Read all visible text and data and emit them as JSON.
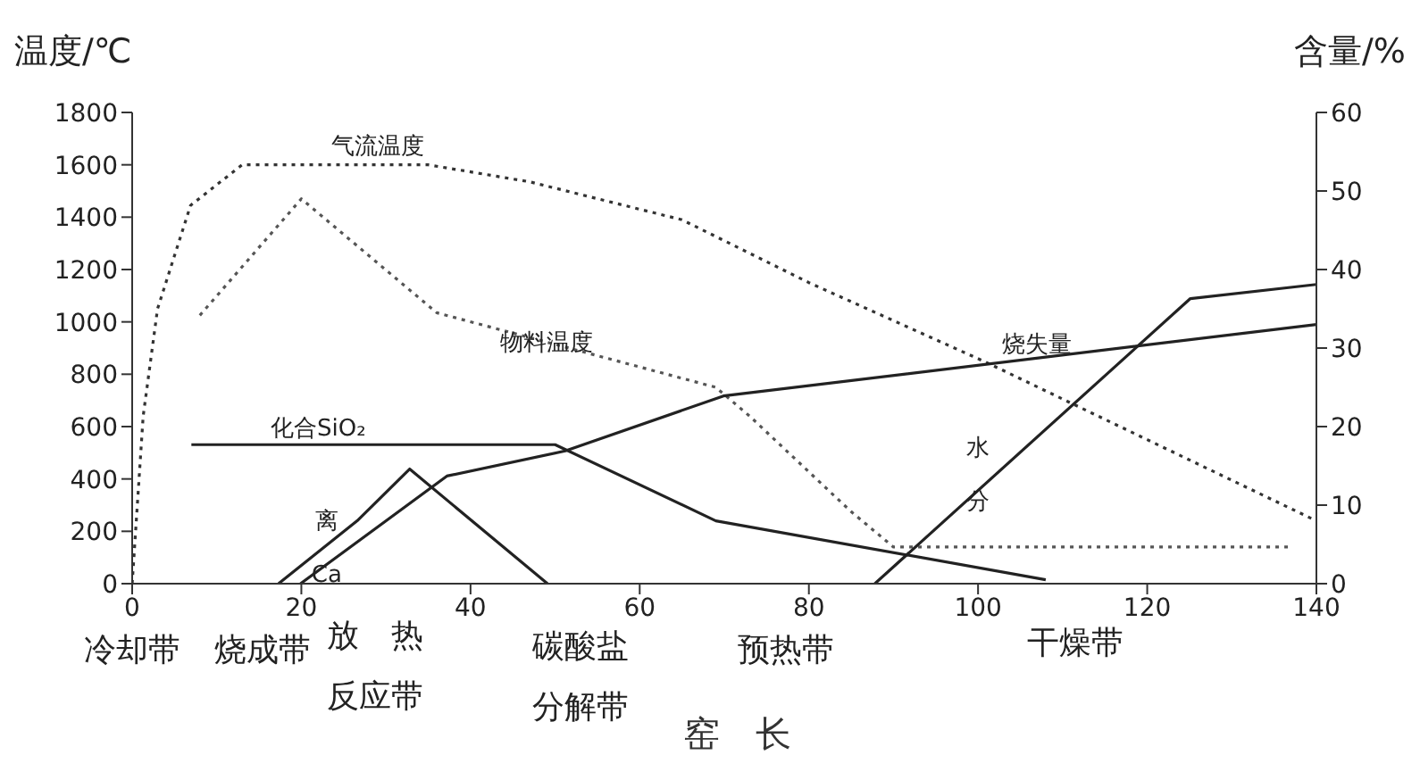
{
  "chart_data": {
    "type": "line",
    "ylabel": "温度/℃",
    "y2label": "含量/%",
    "xlabel": "窑　长",
    "xlim": [
      0,
      140
    ],
    "xticks": [
      0,
      20,
      40,
      60,
      80,
      100,
      120,
      140
    ],
    "ylim": [
      0,
      1800
    ],
    "yticks": [
      0,
      200,
      400,
      600,
      800,
      1000,
      1200,
      1400,
      1600,
      1800
    ],
    "y2lim": [
      0,
      60
    ],
    "y2ticks": [
      0,
      10,
      20,
      30,
      40,
      50,
      60
    ],
    "grid": false,
    "marker": "none",
    "series": [
      {
        "name": "气流温度",
        "color": "#333333",
        "line_style": "dotted",
        "x": [
          0,
          1.3,
          3,
          6.9,
          13,
          35,
          47,
          65,
          80,
          101,
          120,
          140
        ],
        "values": [
          0,
          640,
          1050,
          1445,
          1600,
          1600,
          1535,
          1390,
          1150,
          845,
          550,
          240
        ]
      },
      {
        "name": "物料温度",
        "color": "#555555",
        "line_style": "dotted",
        "x": [
          8,
          20,
          36,
          69,
          73,
          85,
          90,
          137
        ],
        "values": [
          1025,
          1470,
          1035,
          750,
          640,
          275,
          140,
          140
        ]
      },
      {
        "name": "化合SiO₂",
        "color": "#222222",
        "line_style": "solid",
        "axis": "y2",
        "x": [
          7,
          50,
          69,
          108
        ],
        "values": [
          17.7,
          17.7,
          8,
          0.5
        ]
      },
      {
        "name": "离Ca",
        "color": "#222222",
        "line_style": "solid",
        "axis": "y2",
        "x": [
          17.3,
          26.6,
          32.8,
          49.1
        ],
        "values": [
          0,
          8,
          14.6,
          0
        ]
      },
      {
        "name": "烧失量",
        "color": "#222222",
        "line_style": "solid",
        "axis": "y2",
        "x": [
          19.9,
          37.2,
          51.2,
          69.9,
          140
        ],
        "values": [
          0,
          13.7,
          16.9,
          23.9,
          33
        ]
      },
      {
        "name": "水分",
        "color": "#222222",
        "line_style": "solid",
        "axis": "y2",
        "x": [
          87.8,
          125.1,
          140
        ],
        "values": [
          0,
          36.3,
          38.1
        ]
      }
    ],
    "annotations": [
      "冷却带",
      "烧成带",
      "放　热",
      "反应带",
      "碳酸盐",
      "分解带",
      "预热带",
      "干燥带"
    ]
  }
}
